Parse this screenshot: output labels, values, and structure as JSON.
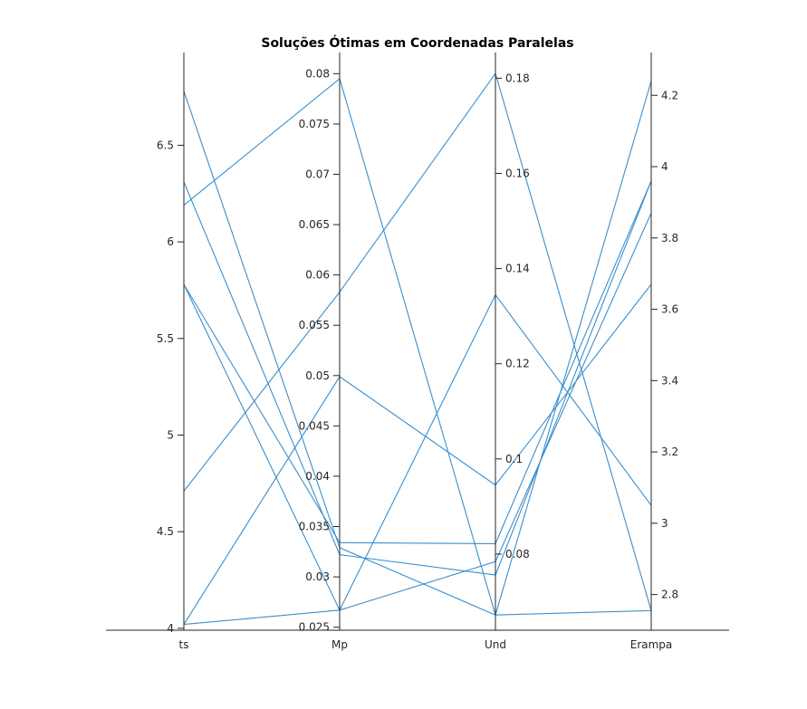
{
  "chart_data": {
    "type": "parallel_coordinates",
    "title": "Soluções Ótimas em Coordenadas Paralelas",
    "line_color": "#3b8fcc",
    "axes": [
      {
        "name": "ts",
        "min": 3.99,
        "max": 6.98,
        "ticks": [
          4,
          4.5,
          5,
          5.5,
          6,
          6.5
        ],
        "tick_labels": [
          "4",
          "4.5",
          "5",
          "5.5",
          "6",
          "6.5"
        ],
        "ticks_side": "left"
      },
      {
        "name": "Mp",
        "min": 0.0247,
        "max": 0.0821,
        "ticks": [
          0.025,
          0.03,
          0.035,
          0.04,
          0.045,
          0.05,
          0.055,
          0.06,
          0.065,
          0.07,
          0.075,
          0.08
        ],
        "tick_labels": [
          "0.025",
          "0.03",
          "0.035",
          "0.04",
          "0.045",
          "0.05",
          "0.055",
          "0.06",
          "0.065",
          "0.07",
          "0.075",
          "0.08"
        ],
        "ticks_side": "left"
      },
      {
        "name": "Und",
        "min": 0.064,
        "max": 0.1854,
        "ticks": [
          0.08,
          0.1,
          0.12,
          0.14,
          0.16,
          0.18
        ],
        "tick_labels": [
          "0.08",
          "0.1",
          "0.12",
          "0.14",
          "0.16",
          "0.18"
        ],
        "ticks_side": "right"
      },
      {
        "name": "Erampa",
        "min": 2.7,
        "max": 4.32,
        "ticks": [
          2.8,
          3,
          3.2,
          3.4,
          3.6,
          3.8,
          4,
          4.2
        ],
        "tick_labels": [
          "2.8",
          "3",
          "3.2",
          "3.4",
          "3.6",
          "3.8",
          "4",
          "4.2"
        ],
        "ticks_side": "right"
      }
    ],
    "series": [
      {
        "values": [
          6.19,
          0.0795,
          0.0672,
          2.755
        ]
      },
      {
        "values": [
          6.78,
          0.0329,
          0.0672,
          4.24
        ]
      },
      {
        "values": [
          6.31,
          0.0322,
          0.0756,
          3.96
        ]
      },
      {
        "values": [
          5.78,
          0.0267,
          0.1345,
          3.05
        ]
      },
      {
        "values": [
          4.71,
          0.0583,
          0.181,
          2.755
        ]
      },
      {
        "values": [
          4.02,
          0.0499,
          0.0945,
          3.67
        ]
      },
      {
        "values": [
          4.02,
          0.0267,
          0.0784,
          3.87
        ]
      },
      {
        "values": [
          5.78,
          0.0334,
          0.0822,
          3.96
        ]
      }
    ],
    "grid": false,
    "legend": "none"
  }
}
